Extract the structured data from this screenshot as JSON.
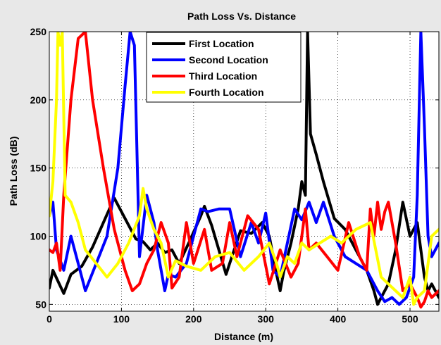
{
  "chart_data": {
    "type": "line",
    "title": "Path Loss Vs. Distance",
    "xlabel": "Distance (m)",
    "ylabel": "Path Loss (dB)",
    "xlim": [
      0,
      540
    ],
    "ylim": [
      45,
      250
    ],
    "xticks": [
      0,
      100,
      200,
      300,
      400,
      500
    ],
    "yticks": [
      50,
      100,
      150,
      200,
      250
    ],
    "grid": true,
    "legend_position": "top-center",
    "series": [
      {
        "name": "First Location",
        "color": "#000000",
        "x": [
          0,
          5,
          12,
          20,
          30,
          45,
          60,
          75,
          90,
          105,
          120,
          130,
          140,
          150,
          160,
          170,
          180,
          195,
          210,
          215,
          225,
          235,
          245,
          255,
          265,
          280,
          295,
          305,
          315,
          320,
          325,
          335,
          345,
          350,
          355,
          358,
          362,
          370,
          380,
          395,
          410,
          425,
          440,
          450,
          455,
          460,
          470,
          480,
          490,
          500,
          510,
          515,
          520,
          525,
          530,
          540
        ],
        "values": [
          62,
          75,
          67,
          58,
          72,
          78,
          92,
          110,
          128,
          113,
          98,
          96,
          90,
          95,
          88,
          90,
          80,
          97,
          115,
          122,
          108,
          90,
          72,
          88,
          104,
          102,
          110,
          100,
          72,
          60,
          74,
          95,
          120,
          140,
          130,
          250,
          175,
          160,
          140,
          113,
          105,
          90,
          75,
          60,
          50,
          55,
          65,
          90,
          125,
          100,
          110,
          90,
          70,
          60,
          65,
          55
        ]
      },
      {
        "name": "Second Location",
        "color": "#0000ff",
        "x": [
          0,
          5,
          10,
          20,
          30,
          40,
          50,
          65,
          80,
          95,
          105,
          112,
          118,
          125,
          135,
          145,
          150,
          160,
          165,
          175,
          190,
          200,
          210,
          220,
          235,
          250,
          265,
          280,
          290,
          300,
          310,
          320,
          330,
          340,
          350,
          360,
          370,
          380,
          395,
          410,
          425,
          440,
          455,
          465,
          475,
          485,
          495,
          505,
          510,
          515,
          520,
          525,
          530,
          540
        ],
        "values": [
          115,
          125,
          90,
          75,
          100,
          80,
          60,
          80,
          100,
          150,
          210,
          250,
          240,
          85,
          130,
          110,
          90,
          60,
          72,
          70,
          80,
          100,
          120,
          118,
          120,
          120,
          85,
          110,
          95,
          117,
          75,
          70,
          95,
          120,
          112,
          125,
          110,
          125,
          100,
          85,
          80,
          75,
          60,
          52,
          55,
          50,
          55,
          70,
          130,
          250,
          180,
          100,
          85,
          95
        ]
      },
      {
        "name": "Third Location",
        "color": "#ff0000",
        "x": [
          0,
          5,
          10,
          15,
          20,
          30,
          40,
          50,
          60,
          75,
          90,
          105,
          115,
          125,
          135,
          145,
          155,
          165,
          170,
          180,
          190,
          200,
          215,
          225,
          240,
          250,
          260,
          275,
          290,
          305,
          320,
          335,
          345,
          355,
          360,
          370,
          385,
          400,
          415,
          430,
          440,
          445,
          450,
          455,
          460,
          465,
          470,
          480,
          490,
          500,
          510,
          515,
          520,
          525,
          530,
          540
        ],
        "values": [
          90,
          88,
          95,
          75,
          130,
          200,
          245,
          250,
          200,
          150,
          105,
          75,
          60,
          65,
          80,
          90,
          110,
          95,
          62,
          70,
          110,
          80,
          105,
          75,
          80,
          110,
          85,
          115,
          105,
          65,
          90,
          70,
          80,
          120,
          90,
          95,
          85,
          75,
          110,
          85,
          75,
          120,
          100,
          125,
          105,
          118,
          125,
          95,
          60,
          65,
          55,
          48,
          52,
          60,
          55,
          60
        ]
      },
      {
        "name": "Fourth Location",
        "color": "#ffff00",
        "x": [
          0,
          5,
          10,
          12,
          15,
          18,
          22,
          30,
          40,
          50,
          65,
          80,
          95,
          110,
          125,
          130,
          135,
          145,
          155,
          165,
          175,
          190,
          210,
          230,
          250,
          270,
          290,
          305,
          315,
          320,
          330,
          340,
          350,
          360,
          375,
          390,
          405,
          425,
          445,
          460,
          470,
          480,
          490,
          500,
          505,
          510,
          520,
          530,
          540
        ],
        "values": [
          115,
          140,
          200,
          250,
          240,
          250,
          130,
          125,
          110,
          90,
          80,
          70,
          80,
          95,
          115,
          135,
          120,
          105,
          95,
          70,
          82,
          78,
          75,
          85,
          88,
          75,
          85,
          95,
          80,
          70,
          85,
          80,
          95,
          90,
          95,
          100,
          95,
          105,
          110,
          70,
          65,
          60,
          55,
          70,
          50,
          55,
          60,
          100,
          105
        ]
      }
    ]
  }
}
